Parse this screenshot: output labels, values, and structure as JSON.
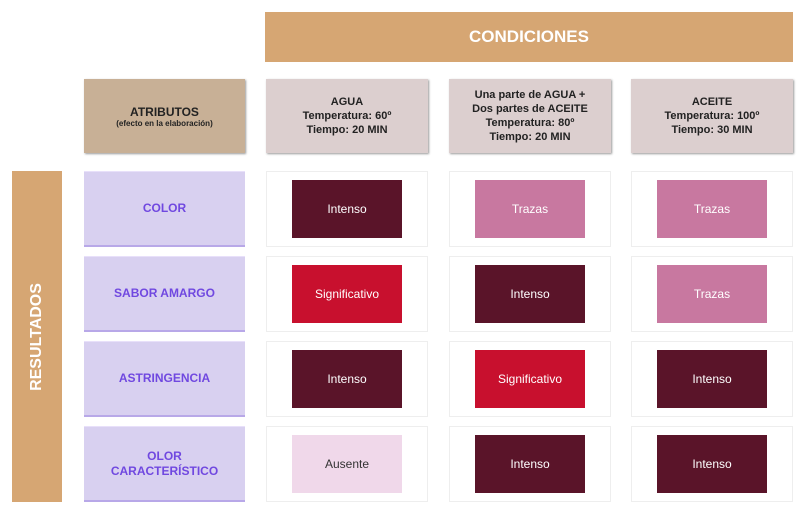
{
  "banner": "CONDICIONES",
  "side_label": "RESULTADOS",
  "attributes_header": {
    "title": "ATRIBUTOS",
    "subtitle": "(efecto en la elaboración)"
  },
  "conditions": [
    {
      "lines": [
        "AGUA",
        "Temperatura: 60º",
        "Tiempo: 20 MIN"
      ]
    },
    {
      "lines": [
        "Una parte de AGUA +",
        "Dos partes de ACEITE",
        "Temperatura: 80º",
        "Tiempo: 20 MIN"
      ]
    },
    {
      "lines": [
        "ACEITE",
        "Temperatura: 100º",
        "Tiempo: 30 MIN"
      ]
    }
  ],
  "rows": [
    {
      "label": "COLOR",
      "cells": [
        "Intenso",
        "Trazas",
        "Trazas"
      ]
    },
    {
      "label": "SABOR AMARGO",
      "cells": [
        "Significativo",
        "Intenso",
        "Trazas"
      ]
    },
    {
      "label": "ASTRINGENCIA",
      "cells": [
        "Intenso",
        "Significativo",
        "Intenso"
      ]
    },
    {
      "label": "OLOR CARACTERÍSTICO",
      "cells": [
        "Ausente",
        "Intenso",
        "Intenso"
      ]
    }
  ],
  "level_colors": {
    "Intenso": "#5a1429",
    "Significativo": "#c8102e",
    "Trazas": "#c878a0",
    "Ausente": "#f0d8ea"
  },
  "level_text_colors": {
    "Ausente": "#333333"
  }
}
